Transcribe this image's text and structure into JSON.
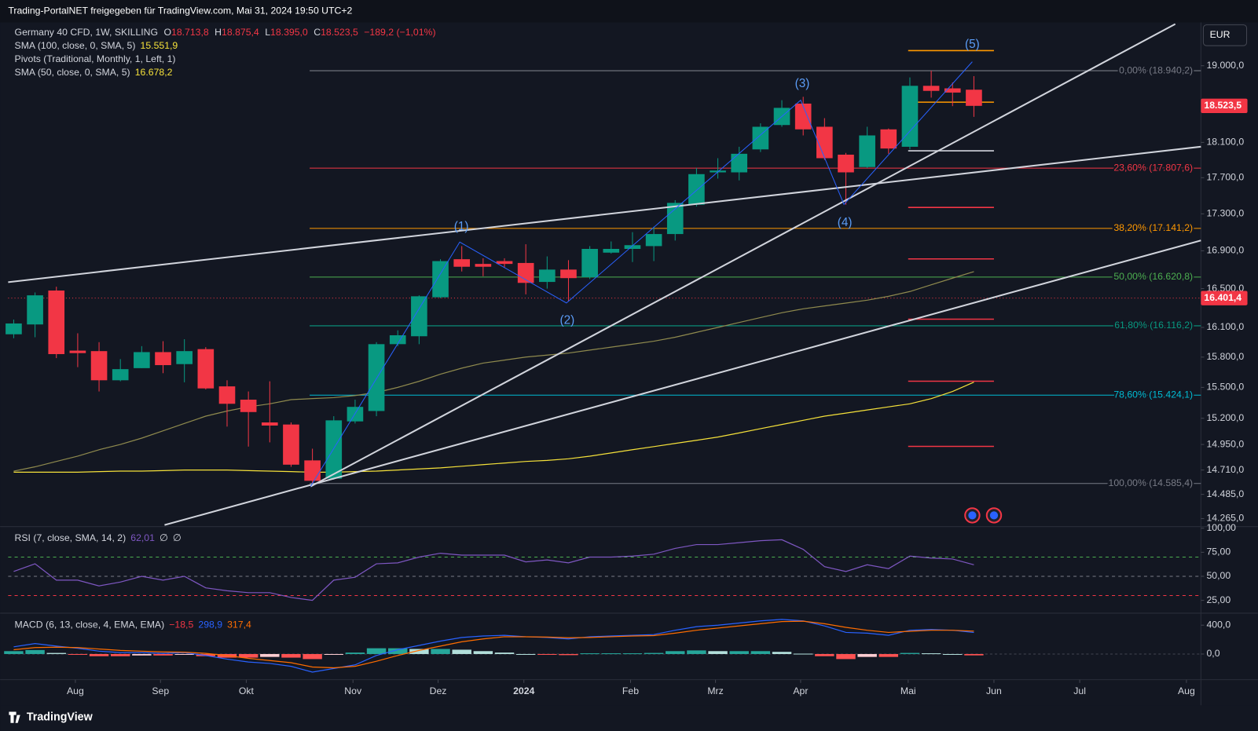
{
  "header": {
    "title": "Trading-PortalNET freigegeben für TradingView.com, Mai 31, 2024 19:50 UTC+2"
  },
  "currency": "EUR",
  "brand": "TradingView",
  "legend": {
    "symbol": "Germany 40 CFD, 1W, SKILLING",
    "fields": [
      {
        "key": "O",
        "value": "18.713,8"
      },
      {
        "key": "H",
        "value": "18.875,4"
      },
      {
        "key": "L",
        "value": "18.395,0"
      },
      {
        "key": "C",
        "value": "18.523,5"
      }
    ],
    "change": "−189,2 (−1,01%)",
    "pivots": "Pivots (Traditional, Monthly, 1, Left, 1)"
  },
  "waves": [
    "(1)",
    "(2)",
    "(3)",
    "(4)",
    "(5)"
  ],
  "chart_data": [
    {
      "type": "candlestick",
      "log": true,
      "up_color": "#089981",
      "down_color": "#f23645",
      "open": [
        16030,
        16130,
        16480,
        15865,
        15860,
        15570,
        15690,
        15850,
        15730,
        15880,
        15510,
        15380,
        15160,
        15140,
        14800,
        14630,
        15170,
        15270,
        15930,
        16010,
        16410,
        16810,
        16760,
        16790,
        16770,
        16570,
        16700,
        16620,
        16880,
        16920,
        16950,
        17080,
        17400,
        17760,
        17760,
        18020,
        18300,
        18550,
        18280,
        17960,
        17820,
        18250,
        18050,
        18760,
        18730,
        18713.8
      ],
      "high": [
        16180,
        16460,
        16520,
        16040,
        15950,
        15780,
        15910,
        15960,
        15980,
        15900,
        15570,
        15460,
        15560,
        15160,
        14910,
        15220,
        15380,
        15950,
        16070,
        16430,
        16810,
        16950,
        16820,
        16820,
        16970,
        16840,
        16800,
        16950,
        17000,
        17100,
        17160,
        17450,
        17810,
        17920,
        18050,
        18320,
        18590,
        18630,
        18380,
        17980,
        18280,
        18260,
        18860,
        18940.2,
        18800,
        18875.4
      ],
      "low": [
        15990,
        16000,
        15790,
        15700,
        15460,
        15560,
        15690,
        15640,
        15550,
        15480,
        15120,
        14930,
        14970,
        14740,
        14585.4,
        14620,
        15150,
        15220,
        15910,
        15930,
        16400,
        16680,
        16630,
        16720,
        16440,
        16500,
        16370,
        16600,
        16870,
        16780,
        16790,
        17010,
        17380,
        17690,
        17670,
        17990,
        18280,
        18180,
        17900,
        17400,
        17810,
        17970,
        18020,
        18620,
        18520,
        18395
      ],
      "close": [
        16140,
        16430,
        15830,
        15840,
        15570,
        15680,
        15850,
        15720,
        15860,
        15490,
        15340,
        15260,
        15130,
        14760,
        14610,
        15180,
        15310,
        15930,
        16020,
        16420,
        16790,
        16730,
        16730,
        16760,
        16560,
        16700,
        16610,
        16920,
        16920,
        16960,
        17080,
        17420,
        17740,
        17780,
        17970,
        18280,
        18500,
        18250,
        17920,
        17760,
        18180,
        18030,
        18760,
        18700,
        18680,
        18523.5
      ],
      "series": [
        {
          "name": "SMA (100, close, 0, SMA, 5)",
          "color": "#f5e13a",
          "value_label": "15.551,9",
          "values": [
            14690,
            14690,
            14690,
            14690,
            14695,
            14700,
            14700,
            14705,
            14710,
            14710,
            14710,
            14705,
            14700,
            14695,
            14690,
            14690,
            14695,
            14700,
            14710,
            14720,
            14730,
            14745,
            14760,
            14775,
            14790,
            14800,
            14815,
            14840,
            14870,
            14900,
            14930,
            14960,
            14990,
            15020,
            15060,
            15100,
            15140,
            15180,
            15220,
            15250,
            15280,
            15310,
            15340,
            15390,
            15460,
            15551.9
          ]
        },
        {
          "name": "SMA (50, close, 0, SMA, 5)",
          "color": "#8f8a4e",
          "value_label": "16.678,2",
          "values": [
            14700,
            14740,
            14790,
            14840,
            14900,
            14950,
            15010,
            15080,
            15150,
            15220,
            15270,
            15310,
            15340,
            15380,
            15390,
            15400,
            15420,
            15450,
            15500,
            15560,
            15630,
            15690,
            15740,
            15770,
            15800,
            15820,
            15840,
            15870,
            15900,
            15930,
            15960,
            16000,
            16050,
            16100,
            16150,
            16200,
            16250,
            16290,
            16320,
            16350,
            16380,
            16420,
            16470,
            16540,
            16610,
            16678.2
          ]
        }
      ],
      "ylim": [
        14207,
        19508
      ],
      "yticks": [
        {
          "value": 19000,
          "label": "19.000,0"
        },
        {
          "value": 18100,
          "label": "18.100,0"
        },
        {
          "value": 17700,
          "label": "17.700,0"
        },
        {
          "value": 17300,
          "label": "17.300,0"
        },
        {
          "value": 16900,
          "label": "16.900,0"
        },
        {
          "value": 16500,
          "label": "16.500,0"
        },
        {
          "value": 16100,
          "label": "16.100,0"
        },
        {
          "value": 15800,
          "label": "15.800,0"
        },
        {
          "value": 15500,
          "label": "15.500,0"
        },
        {
          "value": 15200,
          "label": "15.200,0"
        },
        {
          "value": 14950,
          "label": "14.950,0"
        },
        {
          "value": 14710,
          "label": "14.710,0"
        },
        {
          "value": 14485,
          "label": "14.485,0"
        },
        {
          "value": 14265,
          "label": "14.265,0"
        }
      ],
      "xlim": [
        -0.26,
        55.64
      ],
      "xticks": [
        {
          "value": 2.89,
          "label": "Aug"
        },
        {
          "value": 6.88,
          "label": "Sep"
        },
        {
          "value": 10.9,
          "label": "Okt"
        },
        {
          "value": 15.9,
          "label": "Nov"
        },
        {
          "value": 19.89,
          "label": "Dez"
        },
        {
          "value": 23.91,
          "label": "2024"
        },
        {
          "value": 28.91,
          "label": "Feb"
        },
        {
          "value": 32.89,
          "label": "Mrz"
        },
        {
          "value": 36.88,
          "label": "Apr"
        },
        {
          "value": 41.92,
          "label": "Mai"
        },
        {
          "value": 45.94,
          "label": "Jun"
        },
        {
          "value": 49.96,
          "label": "Jul"
        },
        {
          "value": 54.96,
          "label": "Aug"
        }
      ],
      "fib": {
        "x_start": 13.87,
        "levels": [
          {
            "value": 18940.2,
            "label": "0,00% (18.940,2)",
            "color": "#787b86"
          },
          {
            "value": 17807.6,
            "label": "23,60% (17.807,6)",
            "color": "#f23645"
          },
          {
            "value": 17141.2,
            "label": "38,20% (17.141,2)",
            "color": "#ff9800"
          },
          {
            "value": 16620.8,
            "label": "50,00% (16.620,8)",
            "color": "#4caf50"
          },
          {
            "value": 16116.2,
            "label": "61,80% (16.116,2)",
            "color": "#089981"
          },
          {
            "value": 15424.1,
            "label": "78,60% (15.424,1)",
            "color": "#00bcd4"
          },
          {
            "value": 14585.4,
            "label": "100,00% (14.585,4)",
            "color": "#787b86"
          }
        ]
      },
      "pivots": {
        "x_range": [
          41.92,
          45.94
        ],
        "levels": [
          {
            "value": 19183,
            "color": "#ff9800"
          },
          {
            "value": 18567,
            "color": "#ff9800"
          },
          {
            "value": 18004,
            "color": "#d1d4dc"
          },
          {
            "value": 17370,
            "color": "#f23645"
          },
          {
            "value": 16813,
            "color": "#f23645"
          },
          {
            "value": 16184,
            "color": "#f23645"
          },
          {
            "value": 15561,
            "color": "#f23645"
          },
          {
            "value": 14932,
            "color": "#f23645"
          }
        ]
      },
      "last_price": {
        "value": 18523.5,
        "label": "18.523,5",
        "color": "#f23645"
      },
      "price_line": {
        "value": 16401.4,
        "label": "16.401,4",
        "color": "#f23645"
      }
    },
    {
      "type": "line",
      "name": "RSI (7, close, SMA, 14, 2)",
      "value_label": "62,01",
      "na_labels": [
        "∅",
        "∅"
      ],
      "color": "#7e57c2",
      "values": [
        55,
        63,
        46,
        46,
        40,
        44,
        50,
        46,
        50,
        38,
        35,
        33,
        33,
        28,
        25,
        46,
        49,
        63,
        64,
        70,
        74,
        72,
        72,
        72,
        65,
        67,
        64,
        70,
        70,
        71,
        73,
        79,
        83,
        83,
        85,
        87,
        88,
        78,
        60,
        55,
        62,
        58,
        71,
        69,
        68,
        62.01
      ],
      "ylim": [
        10,
        100
      ],
      "yticks": [
        {
          "value": 100,
          "label": "100,00"
        },
        {
          "value": 75,
          "label": "75,00"
        },
        {
          "value": 50,
          "label": "50,00"
        },
        {
          "value": 25,
          "label": "25,00"
        }
      ],
      "levels": [
        {
          "value": 70,
          "color": "#4caf50"
        },
        {
          "value": 50,
          "color": "#787b86"
        },
        {
          "value": 30,
          "color": "#f23645"
        }
      ]
    },
    {
      "type": "macd",
      "name": "MACD (6, 13, close, 4, EMA, EMA)",
      "histogram": {
        "value_label": "−18,5",
        "values": [
          40,
          55,
          15,
          -10,
          -30,
          -30,
          -20,
          -20,
          -5,
          -30,
          -50,
          -50,
          -40,
          -50,
          -70,
          -10,
          20,
          80,
          80,
          70,
          70,
          60,
          40,
          20,
          0,
          -5,
          -15,
          10,
          10,
          10,
          15,
          40,
          50,
          40,
          40,
          40,
          30,
          5,
          -30,
          -70,
          -40,
          -40,
          15,
          10,
          0,
          -18.5
        ]
      },
      "macd": {
        "color": "#2962ff",
        "value_label": "298,9",
        "values": [
          100,
          145,
          110,
          80,
          40,
          20,
          20,
          10,
          20,
          -20,
          -70,
          -110,
          -130,
          -170,
          -250,
          -200,
          -150,
          -20,
          60,
          120,
          180,
          230,
          250,
          260,
          240,
          230,
          210,
          240,
          250,
          260,
          270,
          330,
          380,
          400,
          430,
          460,
          480,
          460,
          390,
          300,
          290,
          260,
          330,
          340,
          330,
          298.9
        ]
      },
      "signal": {
        "color": "#ff6d00",
        "value_label": "317,4",
        "values": [
          60,
          90,
          95,
          90,
          70,
          50,
          40,
          30,
          25,
          10,
          -20,
          -60,
          -90,
          -120,
          -180,
          -190,
          -170,
          -100,
          -20,
          50,
          110,
          170,
          210,
          240,
          240,
          235,
          225,
          230,
          240,
          250,
          255,
          290,
          330,
          360,
          390,
          420,
          450,
          455,
          420,
          370,
          330,
          300,
          315,
          330,
          330,
          317.4
        ]
      },
      "ylim": [
        -356,
        533
      ],
      "yticks": [
        {
          "value": 400,
          "label": "400,0"
        },
        {
          "value": 0,
          "label": "0,0"
        }
      ]
    }
  ]
}
